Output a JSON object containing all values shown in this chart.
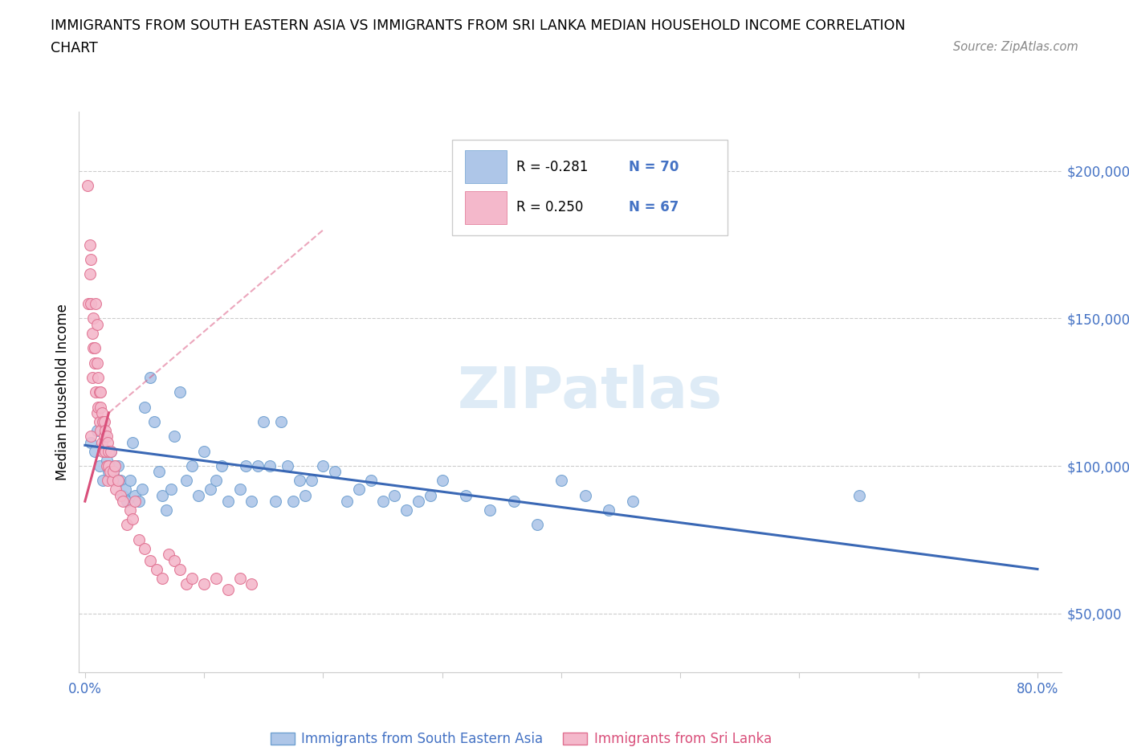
{
  "title_line1": "IMMIGRANTS FROM SOUTH EASTERN ASIA VS IMMIGRANTS FROM SRI LANKA MEDIAN HOUSEHOLD INCOME CORRELATION",
  "title_line2": "CHART",
  "source": "Source: ZipAtlas.com",
  "ylabel": "Median Household Income",
  "xlim": [
    -0.005,
    0.82
  ],
  "ylim": [
    30000,
    220000
  ],
  "x_ticks": [
    0.0,
    0.1,
    0.2,
    0.3,
    0.4,
    0.5,
    0.6,
    0.7,
    0.8
  ],
  "y_ticks": [
    50000,
    100000,
    150000,
    200000
  ],
  "y_tick_labels": [
    "$50,000",
    "$100,000",
    "$150,000",
    "$200,000"
  ],
  "watermark": "ZIPatlas",
  "legend_r1": "R = -0.281",
  "legend_n1": "N = 70",
  "legend_r2": "R = 0.250",
  "legend_n2": "N = 67",
  "color_sea": "#aec6e8",
  "color_sri": "#f4b8cb",
  "color_sea_edge": "#6fa0d0",
  "color_sri_edge": "#e07090",
  "color_sea_line": "#3a68b5",
  "color_sri_line": "#d94f7a",
  "color_blue_text": "#4472c4",
  "sea_x": [
    0.005,
    0.008,
    0.01,
    0.012,
    0.015,
    0.018,
    0.02,
    0.022,
    0.024,
    0.025,
    0.028,
    0.03,
    0.032,
    0.034,
    0.035,
    0.038,
    0.04,
    0.042,
    0.045,
    0.048,
    0.05,
    0.055,
    0.058,
    0.062,
    0.065,
    0.068,
    0.072,
    0.075,
    0.08,
    0.085,
    0.09,
    0.095,
    0.1,
    0.105,
    0.11,
    0.115,
    0.12,
    0.13,
    0.135,
    0.14,
    0.145,
    0.15,
    0.155,
    0.16,
    0.165,
    0.17,
    0.175,
    0.18,
    0.185,
    0.19,
    0.2,
    0.21,
    0.22,
    0.23,
    0.24,
    0.25,
    0.26,
    0.27,
    0.28,
    0.29,
    0.3,
    0.32,
    0.34,
    0.36,
    0.38,
    0.4,
    0.42,
    0.44,
    0.46,
    0.65
  ],
  "sea_y": [
    108000,
    105000,
    112000,
    100000,
    95000,
    102000,
    98000,
    105000,
    97000,
    100000,
    100000,
    95000,
    90000,
    92000,
    88000,
    95000,
    108000,
    90000,
    88000,
    92000,
    120000,
    130000,
    115000,
    98000,
    90000,
    85000,
    92000,
    110000,
    125000,
    95000,
    100000,
    90000,
    105000,
    92000,
    95000,
    100000,
    88000,
    92000,
    100000,
    88000,
    100000,
    115000,
    100000,
    88000,
    115000,
    100000,
    88000,
    95000,
    90000,
    95000,
    100000,
    98000,
    88000,
    92000,
    95000,
    88000,
    90000,
    85000,
    88000,
    90000,
    95000,
    90000,
    85000,
    88000,
    80000,
    95000,
    90000,
    85000,
    88000,
    90000
  ],
  "sri_x": [
    0.002,
    0.003,
    0.004,
    0.004,
    0.005,
    0.005,
    0.005,
    0.006,
    0.006,
    0.007,
    0.007,
    0.008,
    0.008,
    0.009,
    0.009,
    0.01,
    0.01,
    0.01,
    0.011,
    0.011,
    0.012,
    0.012,
    0.013,
    0.013,
    0.013,
    0.014,
    0.014,
    0.015,
    0.015,
    0.016,
    0.016,
    0.017,
    0.017,
    0.018,
    0.018,
    0.019,
    0.019,
    0.02,
    0.02,
    0.021,
    0.022,
    0.023,
    0.024,
    0.025,
    0.026,
    0.028,
    0.03,
    0.032,
    0.035,
    0.038,
    0.04,
    0.042,
    0.045,
    0.05,
    0.055,
    0.06,
    0.065,
    0.07,
    0.075,
    0.08,
    0.085,
    0.09,
    0.1,
    0.11,
    0.12,
    0.13,
    0.14
  ],
  "sri_y": [
    195000,
    155000,
    165000,
    175000,
    110000,
    155000,
    170000,
    130000,
    145000,
    140000,
    150000,
    140000,
    135000,
    155000,
    125000,
    148000,
    118000,
    135000,
    120000,
    130000,
    125000,
    115000,
    120000,
    112000,
    125000,
    108000,
    118000,
    115000,
    105000,
    115000,
    110000,
    112000,
    105000,
    110000,
    100000,
    108000,
    95000,
    105000,
    100000,
    98000,
    105000,
    95000,
    98000,
    100000,
    92000,
    95000,
    90000,
    88000,
    80000,
    85000,
    82000,
    88000,
    75000,
    72000,
    68000,
    65000,
    62000,
    70000,
    68000,
    65000,
    60000,
    62000,
    60000,
    62000,
    58000,
    62000,
    60000
  ],
  "sea_trend": [
    0.0,
    0.8,
    107000,
    65000
  ],
  "sri_trend_solid": [
    0.0,
    0.02,
    88000,
    118000
  ],
  "sri_trend_dash": [
    0.02,
    0.2,
    118000,
    180000
  ]
}
